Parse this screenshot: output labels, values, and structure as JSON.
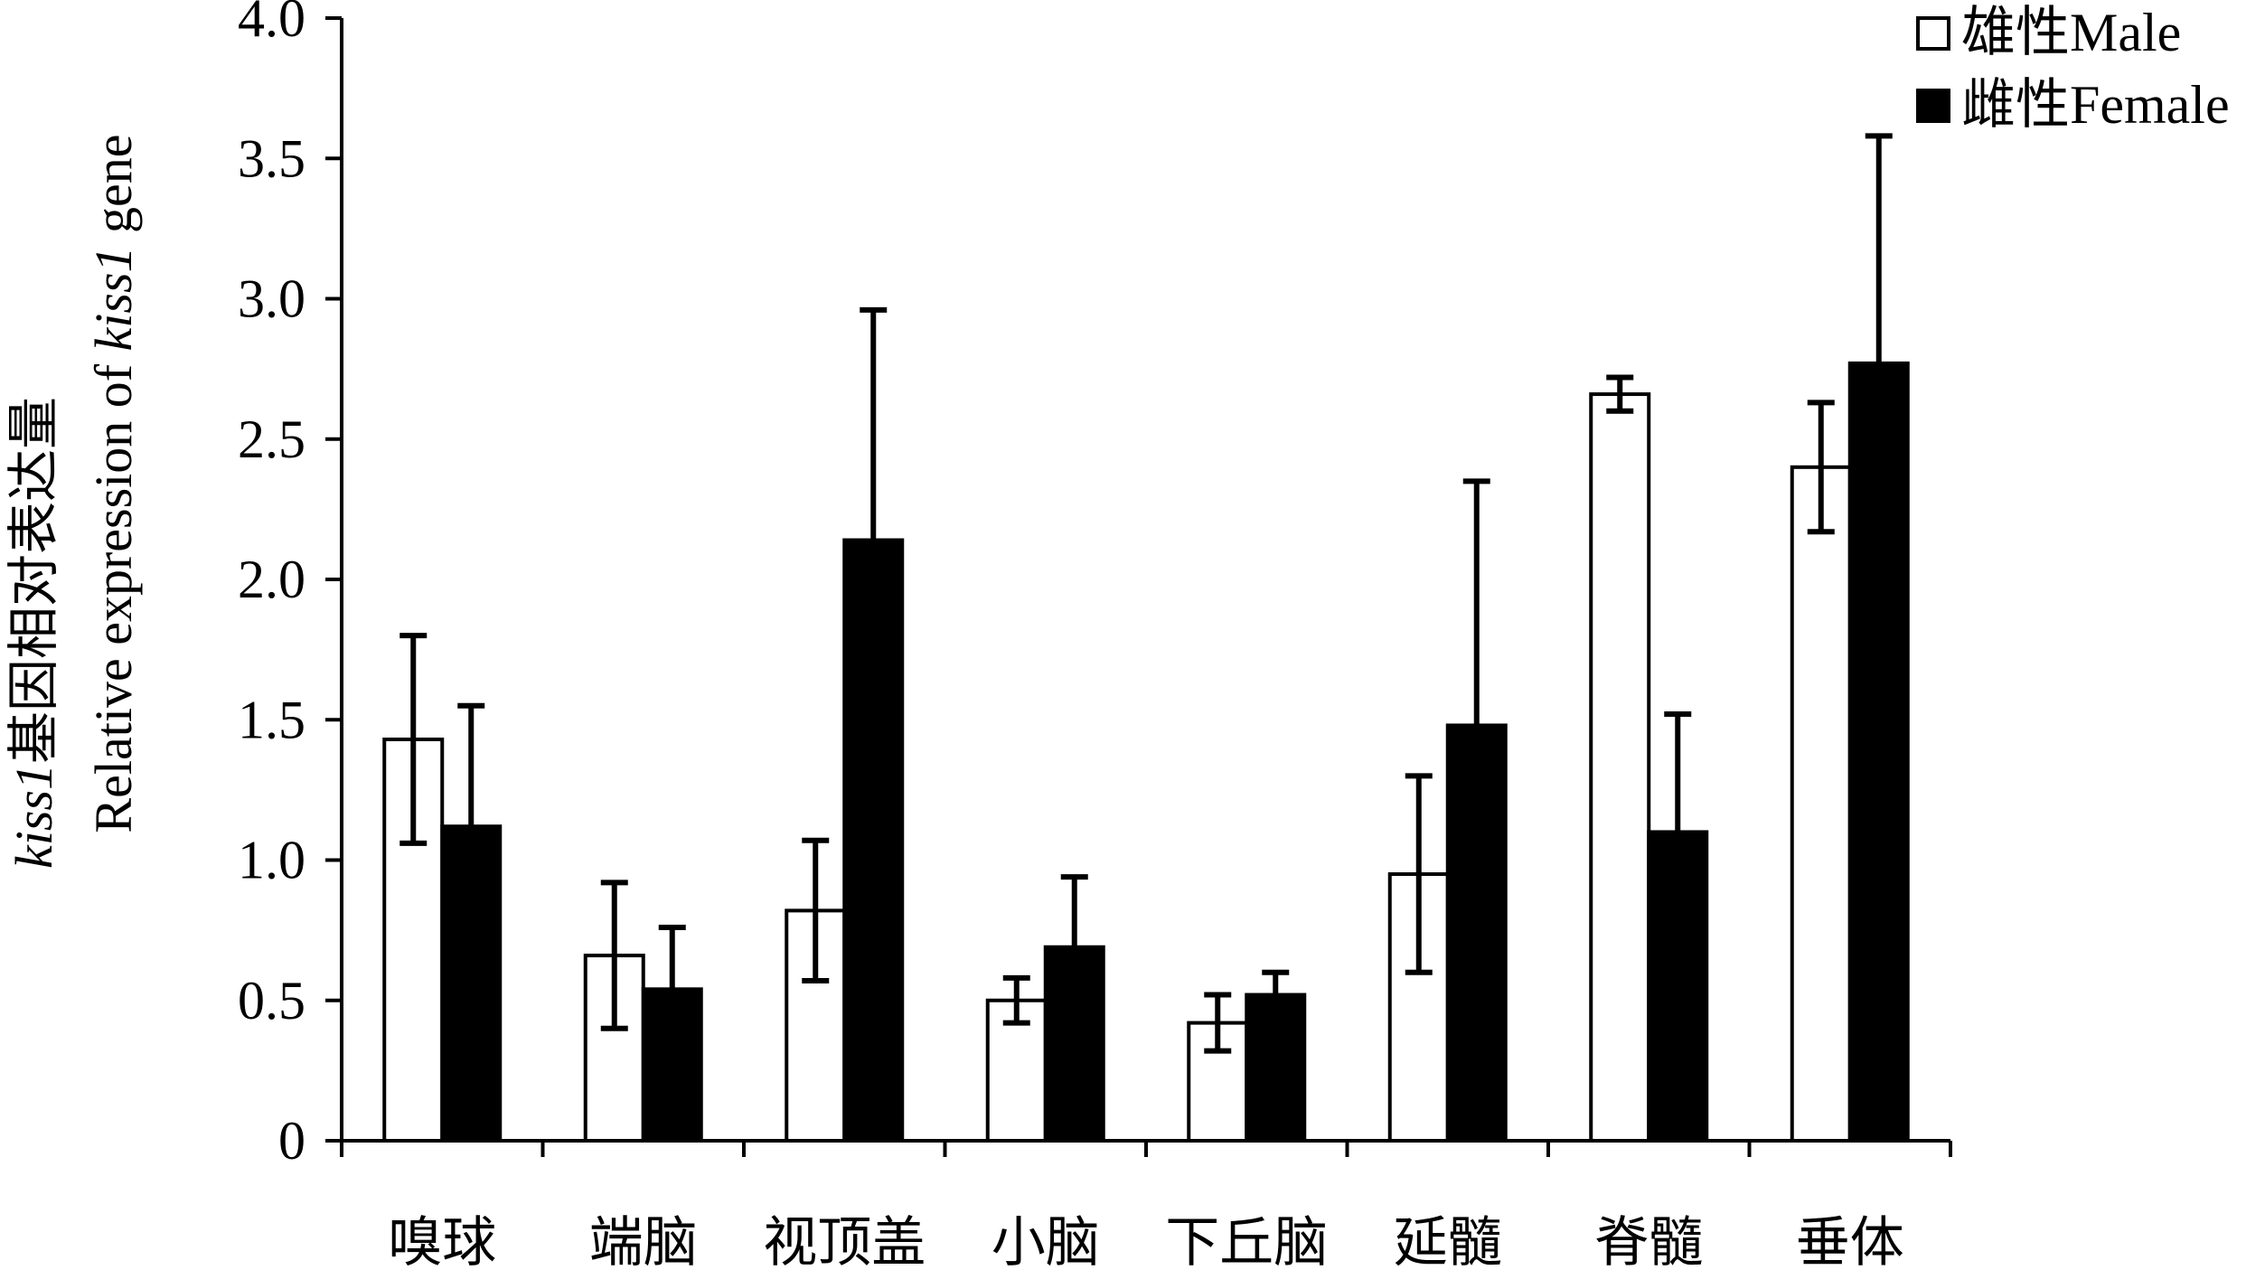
{
  "chart_data": {
    "type": "bar",
    "title": "",
    "ylabel_line1_prefix": "kiss1",
    "ylabel_line1_suffix": "基因相对表达量",
    "ylabel_line2_prefix": "Relative expression of ",
    "ylabel_line2_italic": "kiss1",
    "ylabel_line2_suffix": " gene",
    "xlabel": "",
    "ylim": [
      0,
      4.0
    ],
    "yticks": [
      "0",
      "0.5",
      "1.0",
      "1.5",
      "2.0",
      "2.5",
      "3.0",
      "3.5",
      "4.0"
    ],
    "ytick_values": [
      0,
      0.5,
      1.0,
      1.5,
      2.0,
      2.5,
      3.0,
      3.5,
      4.0
    ],
    "categories": [
      "嗅球",
      "端脑",
      "视顶盖",
      "小脑",
      "下丘脑",
      "延髓",
      "脊髓",
      "垂体"
    ],
    "series": [
      {
        "name": "雄性Male",
        "fill": "#ffffff",
        "values": [
          1.43,
          0.66,
          0.82,
          0.5,
          0.42,
          0.95,
          2.66,
          2.4
        ],
        "errors": [
          0.37,
          0.26,
          0.25,
          0.08,
          0.1,
          0.35,
          0.06,
          0.23
        ]
      },
      {
        "name": "雌性Female",
        "fill": "#000000",
        "values": [
          1.12,
          0.54,
          2.14,
          0.69,
          0.52,
          1.48,
          1.1,
          2.77
        ],
        "errors": [
          0.43,
          0.22,
          0.82,
          0.25,
          0.08,
          0.87,
          0.42,
          0.81
        ]
      }
    ],
    "legend_position": "top-right",
    "grid": false
  }
}
